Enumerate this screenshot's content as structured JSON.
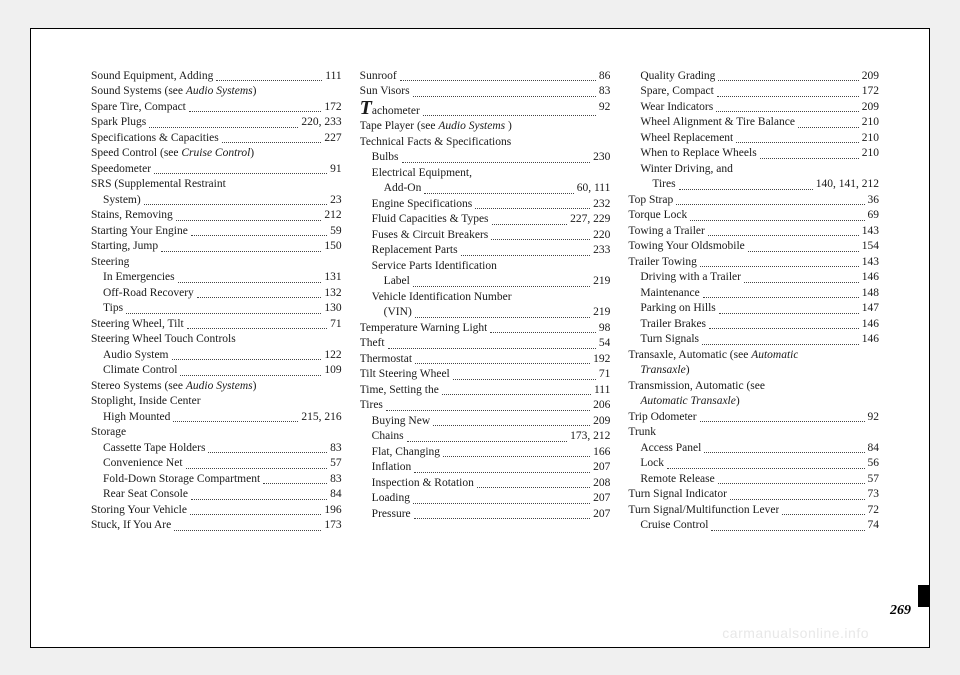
{
  "pageNumber": "269",
  "watermark": "carmanualsonline.info",
  "columns": [
    [
      {
        "label": "Sound Equipment, Adding",
        "page": "111"
      },
      {
        "label": "Sound Systems (see <span class='italic'>Audio Systems</span>)",
        "raw": true
      },
      {
        "label": "Spare Tire, Compact",
        "page": "172"
      },
      {
        "label": "Spark Plugs",
        "page": "220, 233"
      },
      {
        "label": "Specifications & Capacities",
        "page": "227"
      },
      {
        "label": "Speed Control (see <span class='italic'>Cruise Control</span>)",
        "raw": true
      },
      {
        "label": "Speedometer",
        "page": "91"
      },
      {
        "label": "SRS (Supplemental Restraint",
        "cont": true
      },
      {
        "label": "System)",
        "page": "23",
        "sub": true
      },
      {
        "label": "Stains, Removing",
        "page": "212"
      },
      {
        "label": "Starting Your Engine",
        "page": "59"
      },
      {
        "label": "Starting, Jump",
        "page": "150"
      },
      {
        "label": "Steering",
        "header": true
      },
      {
        "label": "In Emergencies",
        "page": "131",
        "sub": true
      },
      {
        "label": "Off-Road Recovery",
        "page": "132",
        "sub": true
      },
      {
        "label": "Tips",
        "page": "130",
        "sub": true
      },
      {
        "label": "Steering Wheel, Tilt",
        "page": "71"
      },
      {
        "label": "Steering Wheel Touch Controls",
        "header": true
      },
      {
        "label": "Audio System",
        "page": "122",
        "sub": true
      },
      {
        "label": "Climate Control",
        "page": "109",
        "sub": true
      },
      {
        "label": "Stereo Systems (see <span class='italic'>Audio Systems</span>)",
        "raw": true
      },
      {
        "label": "Stoplight, Inside Center",
        "cont": true
      },
      {
        "label": "High Mounted",
        "page": "215, 216",
        "sub": true
      },
      {
        "label": "Storage",
        "header": true
      },
      {
        "label": "Cassette Tape Holders",
        "page": "83",
        "sub": true
      },
      {
        "label": "Convenience Net",
        "page": "57",
        "sub": true
      },
      {
        "label": "Fold-Down Storage Compartment",
        "page": "83",
        "sub": true
      },
      {
        "label": "Rear Seat Console",
        "page": "84",
        "sub": true
      },
      {
        "label": "Storing Your Vehicle",
        "page": "196"
      },
      {
        "label": "Stuck, If You Are",
        "page": "173"
      }
    ],
    [
      {
        "label": "Sunroof",
        "page": "86"
      },
      {
        "label": "Sun Visors",
        "page": "83"
      },
      {
        "label": "<span class='bigT'>T</span>achometer",
        "page": "92",
        "raw": true,
        "hasPage": true
      },
      {
        "label": "Tape Player (see <span class='italic'>Audio Systems</span> )",
        "raw": true
      },
      {
        "label": "Technical Facts & Specifications",
        "header": true
      },
      {
        "label": "Bulbs",
        "page": "230",
        "sub": true
      },
      {
        "label": "Electrical Equipment,",
        "sub": true,
        "cont": true
      },
      {
        "label": "Add-On",
        "page": "60, 111",
        "sub": true,
        "indent2": true
      },
      {
        "label": "Engine Specifications",
        "page": "232",
        "sub": true
      },
      {
        "label": "Fluid Capacities & Types",
        "page": "227, 229",
        "sub": true
      },
      {
        "label": "Fuses & Circuit Breakers",
        "page": "220",
        "sub": true
      },
      {
        "label": "Replacement Parts",
        "page": "233",
        "sub": true
      },
      {
        "label": "Service Parts Identification",
        "sub": true,
        "cont": true
      },
      {
        "label": "Label",
        "page": "219",
        "sub": true,
        "indent2": true
      },
      {
        "label": "Vehicle Identification Number",
        "sub": true,
        "cont": true
      },
      {
        "label": "(VIN)",
        "page": "219",
        "sub": true,
        "indent2": true
      },
      {
        "label": "Temperature Warning Light",
        "page": "98"
      },
      {
        "label": "Theft",
        "page": "54"
      },
      {
        "label": "Thermostat",
        "page": "192"
      },
      {
        "label": "Tilt Steering Wheel",
        "page": "71"
      },
      {
        "label": "Time, Setting the",
        "page": "111"
      },
      {
        "label": "Tires",
        "page": "206"
      },
      {
        "label": "Buying New",
        "page": "209",
        "sub": true
      },
      {
        "label": "Chains",
        "page": "173, 212",
        "sub": true
      },
      {
        "label": "Flat, Changing",
        "page": "166",
        "sub": true
      },
      {
        "label": "Inflation",
        "page": "207",
        "sub": true
      },
      {
        "label": "Inspection & Rotation",
        "page": "208",
        "sub": true
      },
      {
        "label": "Loading",
        "page": "207",
        "sub": true
      },
      {
        "label": "Pressure",
        "page": "207",
        "sub": true
      }
    ],
    [
      {
        "label": "Quality Grading",
        "page": "209",
        "sub": true
      },
      {
        "label": "Spare, Compact",
        "page": "172",
        "sub": true
      },
      {
        "label": "Wear Indicators",
        "page": "209",
        "sub": true
      },
      {
        "label": "Wheel Alignment & Tire Balance",
        "page": "210",
        "sub": true
      },
      {
        "label": "Wheel Replacement",
        "page": "210",
        "sub": true
      },
      {
        "label": "When to Replace Wheels",
        "page": "210",
        "sub": true
      },
      {
        "label": "Winter Driving, and",
        "sub": true,
        "cont": true
      },
      {
        "label": "Tires",
        "page": "140, 141, 212",
        "sub": true,
        "indent2": true
      },
      {
        "label": "Top Strap",
        "page": "36"
      },
      {
        "label": "Torque Lock",
        "page": "69"
      },
      {
        "label": "Towing a Trailer",
        "page": "143"
      },
      {
        "label": "Towing Your Oldsmobile",
        "page": "154"
      },
      {
        "label": "Trailer Towing",
        "page": "143"
      },
      {
        "label": "Driving with a Trailer",
        "page": "146",
        "sub": true
      },
      {
        "label": "Maintenance",
        "page": "148",
        "sub": true
      },
      {
        "label": "Parking on Hills",
        "page": "147",
        "sub": true
      },
      {
        "label": "Trailer Brakes",
        "page": "146",
        "sub": true
      },
      {
        "label": "Turn Signals",
        "page": "146",
        "sub": true
      },
      {
        "label": "Transaxle, Automatic (see <span class='italic'>Automatic</span>",
        "raw": true
      },
      {
        "label": "<span class='italic'>Transaxle</span>)",
        "raw": true,
        "sub": true
      },
      {
        "label": "Transmission, Automatic (see",
        "cont": true
      },
      {
        "label": "<span class='italic'>Automatic Transaxle</span>)",
        "raw": true,
        "sub": true
      },
      {
        "label": "Trip Odometer",
        "page": "92"
      },
      {
        "label": "Trunk",
        "header": true
      },
      {
        "label": "Access Panel",
        "page": "84",
        "sub": true
      },
      {
        "label": "Lock",
        "page": "56",
        "sub": true
      },
      {
        "label": "Remote Release",
        "page": "57",
        "sub": true
      },
      {
        "label": "Turn Signal Indicator",
        "page": "73"
      },
      {
        "label": "Turn Signal/Multifunction Lever",
        "page": "72"
      },
      {
        "label": "Cruise Control",
        "page": "74",
        "sub": true
      }
    ]
  ]
}
